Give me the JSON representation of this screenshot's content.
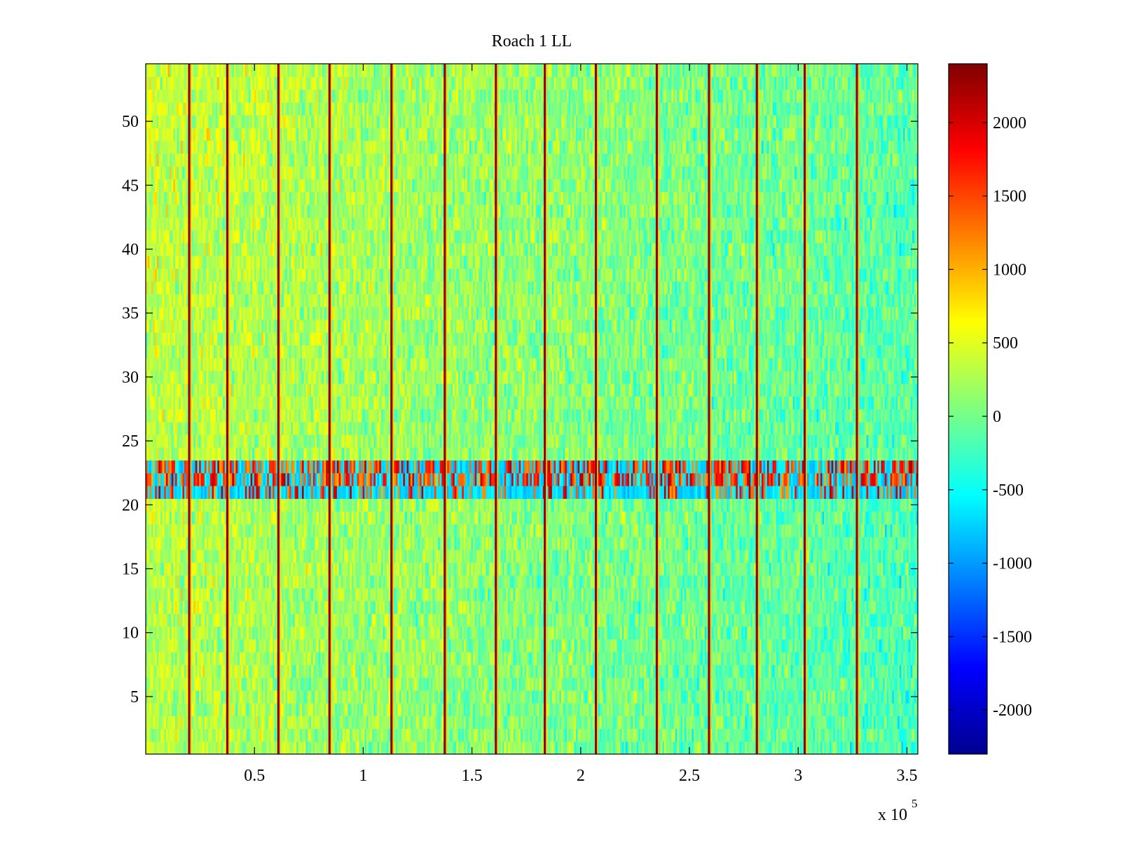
{
  "chart_data": {
    "type": "heatmap",
    "title": "Roach 1 LL",
    "xlabel": "",
    "ylabel": "",
    "xlim": [
      0,
      355000
    ],
    "ylim": [
      0.5,
      54.5
    ],
    "x_ticks": [
      50000,
      100000,
      150000,
      200000,
      250000,
      300000,
      350000
    ],
    "x_tick_labels": [
      "0.5",
      "1",
      "1.5",
      "2",
      "2.5",
      "3",
      "3.5"
    ],
    "x_exponent_label": "x 10",
    "x_exponent_power": "5",
    "y_ticks": [
      5,
      10,
      15,
      20,
      25,
      30,
      35,
      40,
      45,
      50
    ],
    "y_tick_labels": [
      "5",
      "10",
      "15",
      "20",
      "25",
      "30",
      "35",
      "40",
      "45",
      "50"
    ],
    "rows": 54,
    "colorbar": {
      "colormap": "jet",
      "clim": [
        -2300,
        2400
      ],
      "ticks": [
        2000,
        1500,
        1000,
        500,
        0,
        -500,
        -1000,
        -1500,
        -2000
      ],
      "tick_labels": [
        "2000",
        "1500",
        "1000",
        "500",
        "0",
        "-500",
        "-1000",
        "-1500",
        "-2000"
      ]
    },
    "typical_value_start": 350,
    "typical_value_end": -150,
    "vertical_spike_lines_x": [
      20000,
      37500,
      61000,
      84500,
      113000,
      137500,
      161000,
      183500,
      207000,
      235000,
      259000,
      281000,
      303000,
      327000
    ],
    "spike_line_value": 2300,
    "noisy_band_rows": [
      21,
      23
    ],
    "noisy_band_low_value": -700,
    "noisy_band_high_value": 2000
  }
}
